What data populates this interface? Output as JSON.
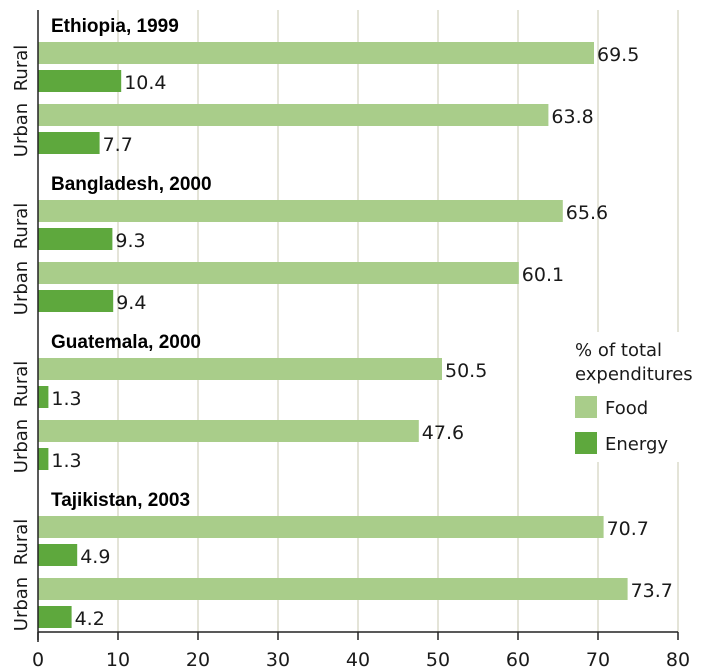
{
  "chart_data": {
    "type": "bar",
    "orientation": "horizontal",
    "groups": [
      {
        "title": "Ethiopia, 1999",
        "rows": [
          {
            "label": "Rural",
            "food": 69.5,
            "energy": 10.4
          },
          {
            "label": "Urban",
            "food": 63.8,
            "energy": 7.7
          }
        ]
      },
      {
        "title": "Bangladesh, 2000",
        "rows": [
          {
            "label": "Rural",
            "food": 65.6,
            "energy": 9.3
          },
          {
            "label": "Urban",
            "food": 60.1,
            "energy": 9.4
          }
        ]
      },
      {
        "title": "Guatemala, 2000",
        "rows": [
          {
            "label": "Rural",
            "food": 50.5,
            "energy": 1.3
          },
          {
            "label": "Urban",
            "food": 47.6,
            "energy": 1.3
          }
        ]
      },
      {
        "title": "Tajikistan, 2003",
        "rows": [
          {
            "label": "Rural",
            "food": 70.7,
            "energy": 4.9
          },
          {
            "label": "Urban",
            "food": 73.7,
            "energy": 4.2
          }
        ]
      }
    ],
    "series": [
      {
        "key": "food",
        "name": "Food",
        "color": "#a9cd8a"
      },
      {
        "key": "energy",
        "name": "Energy",
        "color": "#5ea83d"
      }
    ],
    "legend_title": "% of total expenditures",
    "legend_position": "right",
    "xlim": [
      0,
      80
    ],
    "xticks": [
      0,
      10,
      20,
      30,
      40,
      50,
      60,
      70,
      80
    ],
    "grid": "vertical",
    "grid_color": "#dcdccc"
  }
}
